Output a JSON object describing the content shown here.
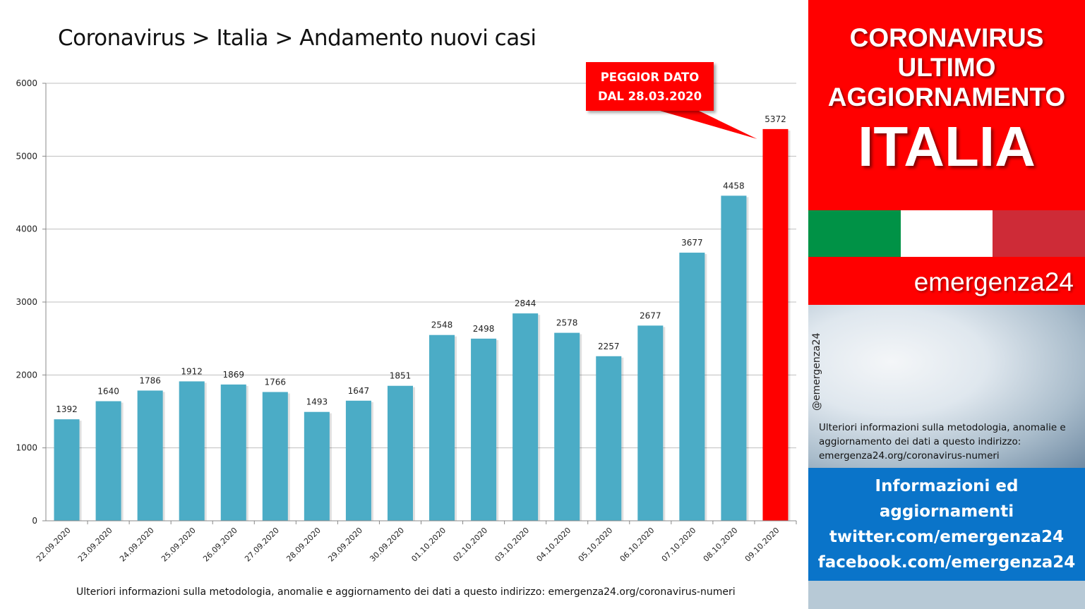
{
  "chart_data": {
    "type": "bar",
    "title": "Coronavirus > Italia > Andamento nuovi casi",
    "categories": [
      "22.09.2020",
      "23.09.2020",
      "24.09.2020",
      "25.09.2020",
      "26.09.2020",
      "27.09.2020",
      "28.09.2020",
      "29.09.2020",
      "30.09.2020",
      "01.10.2020",
      "02.10.2020",
      "03.10.2020",
      "04.10.2020",
      "05.10.2020",
      "06.10.2020",
      "07.10.2020",
      "08.10.2020",
      "09.10.2020"
    ],
    "values": [
      1392,
      1640,
      1786,
      1912,
      1869,
      1766,
      1493,
      1647,
      1851,
      2548,
      2498,
      2844,
      2578,
      2257,
      2677,
      3677,
      4458,
      5372
    ],
    "highlight_index": 17,
    "ylim": [
      0,
      6000
    ],
    "yticks": [
      0,
      1000,
      2000,
      3000,
      4000,
      5000,
      6000
    ],
    "grid": true,
    "xlabel": "",
    "ylabel": "",
    "colors": {
      "bar": "#4bacc6",
      "highlight": "#ff0000",
      "grid": "#bfbfbf"
    }
  },
  "callout": {
    "line1": "PEGGIOR DATO",
    "line2": "DAL 28.03.2020"
  },
  "footer_note": "Ulteriori informazioni sulla metodologia, anomalie e aggiornamento dei dati a questo indirizzo: emergenza24.org/coronavirus-numeri",
  "sidebar": {
    "banner_line1": "CORONAVIRUS",
    "banner_line2": "ULTIMO",
    "banner_line3": "AGGIORNAMENTO",
    "banner_country": "ITALIA",
    "brand": "emergenza24",
    "handle": "@emergenza24",
    "photo_text": "Ulteriori informazioni sulla metodologia, anomalie e aggiornamento dei dati a questo indirizzo: emergenza24.org/coronavirus-numeri",
    "info_line1": "Informazioni ed",
    "info_line2": "aggiornamenti",
    "info_line3": "twitter.com/emergenza24",
    "info_line4": "facebook.com/emergenza24"
  }
}
